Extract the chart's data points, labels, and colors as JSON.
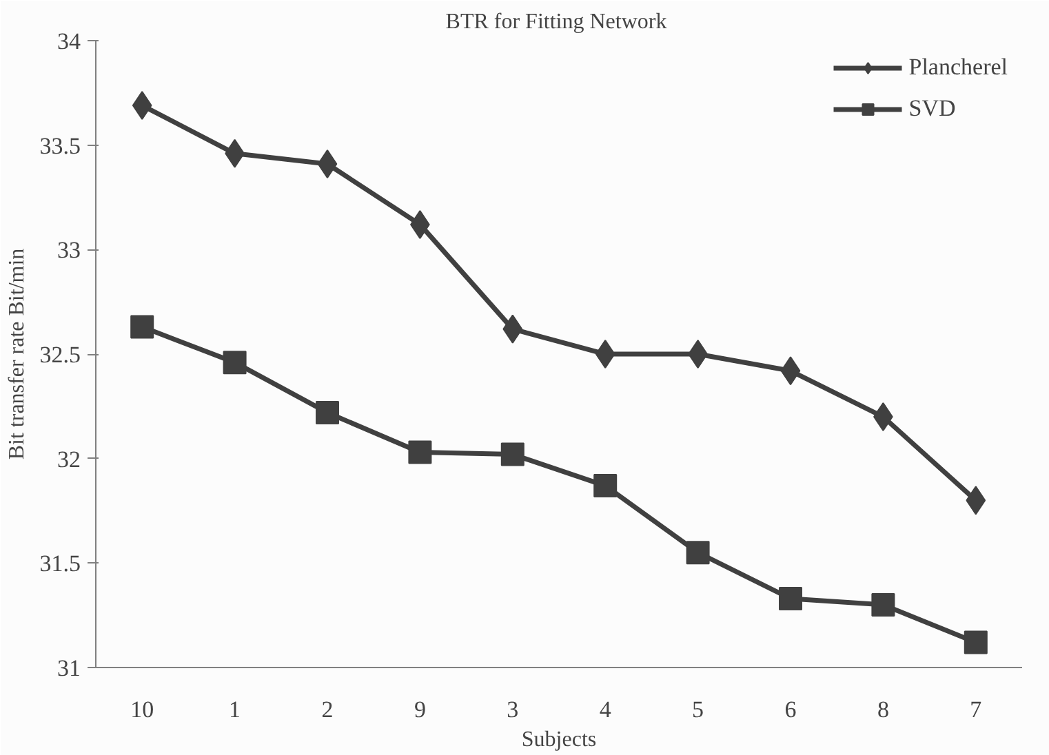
{
  "chart_data": {
    "type": "line",
    "title": "BTR  for Fitting Network",
    "xlabel": "Subjects",
    "ylabel": "Bit transfer rate Bit/min",
    "categories": [
      "10",
      "1",
      "2",
      "9",
      "3",
      "4",
      "5",
      "6",
      "8",
      "7"
    ],
    "series": [
      {
        "name": "Plancherel",
        "color": "#404040",
        "marker": "diamond",
        "values": [
          33.69,
          33.46,
          33.41,
          33.12,
          32.62,
          32.5,
          32.5,
          32.42,
          32.2,
          31.8
        ]
      },
      {
        "name": "SVD",
        "color": "#404040",
        "marker": "square",
        "values": [
          32.63,
          32.46,
          32.22,
          32.03,
          32.02,
          31.87,
          31.55,
          31.33,
          31.3,
          31.12
        ]
      }
    ],
    "ylim": [
      31,
      34
    ],
    "yticks": [
      31,
      31.5,
      32,
      32.5,
      33,
      33.5,
      34
    ],
    "grid": false,
    "legend": "top right"
  }
}
